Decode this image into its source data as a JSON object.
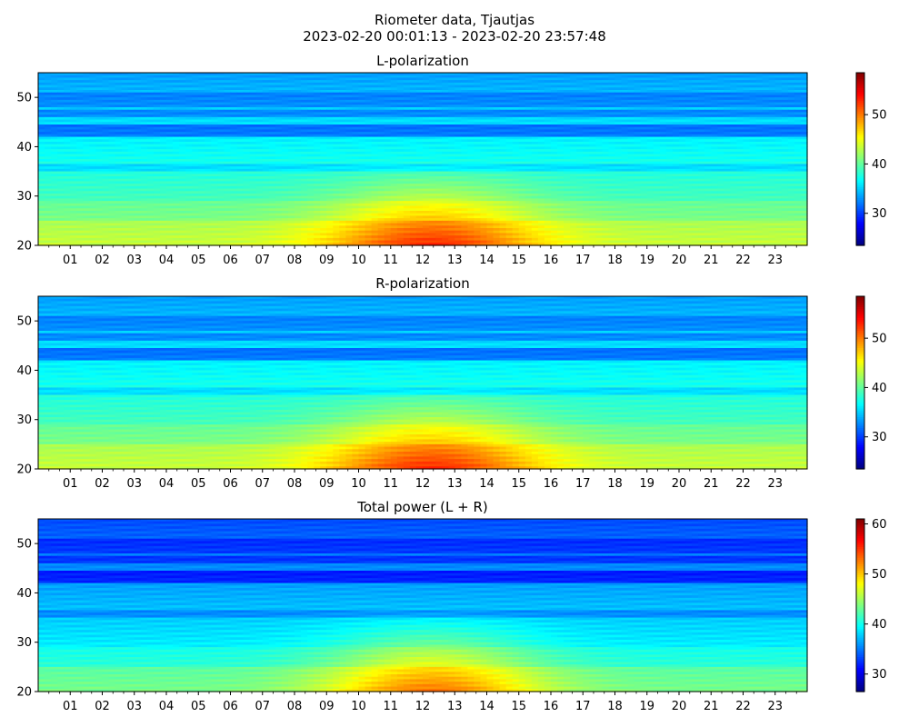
{
  "figure": {
    "title_line1": "Riometer data, Tjautjas",
    "title_line2": "2023-02-20 00:01:13 - 2023-02-20 23:57:48"
  },
  "chart_data": [
    {
      "type": "heatmap",
      "title": "L-polarization",
      "x_tick_labels": [
        "01",
        "02",
        "03",
        "04",
        "05",
        "06",
        "07",
        "08",
        "09",
        "10",
        "11",
        "12",
        "13",
        "14",
        "15",
        "16",
        "17",
        "18",
        "19",
        "20",
        "21",
        "22",
        "23"
      ],
      "x_ticks_hours": [
        1,
        2,
        3,
        4,
        5,
        6,
        7,
        8,
        9,
        10,
        11,
        12,
        13,
        14,
        15,
        16,
        17,
        18,
        19,
        20,
        21,
        22,
        23
      ],
      "xlim_hours": [
        0,
        24
      ],
      "ylim": [
        20,
        55
      ],
      "y_ticks": [
        20,
        30,
        40,
        50
      ],
      "colorbar": {
        "colormap": "jet",
        "range": [
          23.5,
          58.5
        ],
        "ticks": [
          30,
          40,
          50
        ]
      }
    },
    {
      "type": "heatmap",
      "title": "R-polarization",
      "x_tick_labels": [
        "01",
        "02",
        "03",
        "04",
        "05",
        "06",
        "07",
        "08",
        "09",
        "10",
        "11",
        "12",
        "13",
        "14",
        "15",
        "16",
        "17",
        "18",
        "19",
        "20",
        "21",
        "22",
        "23"
      ],
      "x_ticks_hours": [
        1,
        2,
        3,
        4,
        5,
        6,
        7,
        8,
        9,
        10,
        11,
        12,
        13,
        14,
        15,
        16,
        17,
        18,
        19,
        20,
        21,
        22,
        23
      ],
      "xlim_hours": [
        0,
        24
      ],
      "ylim": [
        20,
        55
      ],
      "y_ticks": [
        20,
        30,
        40,
        50
      ],
      "colorbar": {
        "colormap": "jet",
        "range": [
          23.5,
          58.5
        ],
        "ticks": [
          30,
          40,
          50
        ]
      }
    },
    {
      "type": "heatmap",
      "title": "Total power (L + R)",
      "x_tick_labels": [
        "01",
        "02",
        "03",
        "04",
        "05",
        "06",
        "07",
        "08",
        "09",
        "10",
        "11",
        "12",
        "13",
        "14",
        "15",
        "16",
        "17",
        "18",
        "19",
        "20",
        "21",
        "22",
        "23"
      ],
      "x_ticks_hours": [
        1,
        2,
        3,
        4,
        5,
        6,
        7,
        8,
        9,
        10,
        11,
        12,
        13,
        14,
        15,
        16,
        17,
        18,
        19,
        20,
        21,
        22,
        23
      ],
      "xlim_hours": [
        0,
        24
      ],
      "ylim": [
        20,
        55
      ],
      "y_ticks": [
        20,
        30,
        40,
        50
      ],
      "colorbar": {
        "colormap": "jet",
        "range": [
          26.5,
          61
        ],
        "ticks": [
          30,
          40,
          50,
          60
        ]
      }
    }
  ]
}
